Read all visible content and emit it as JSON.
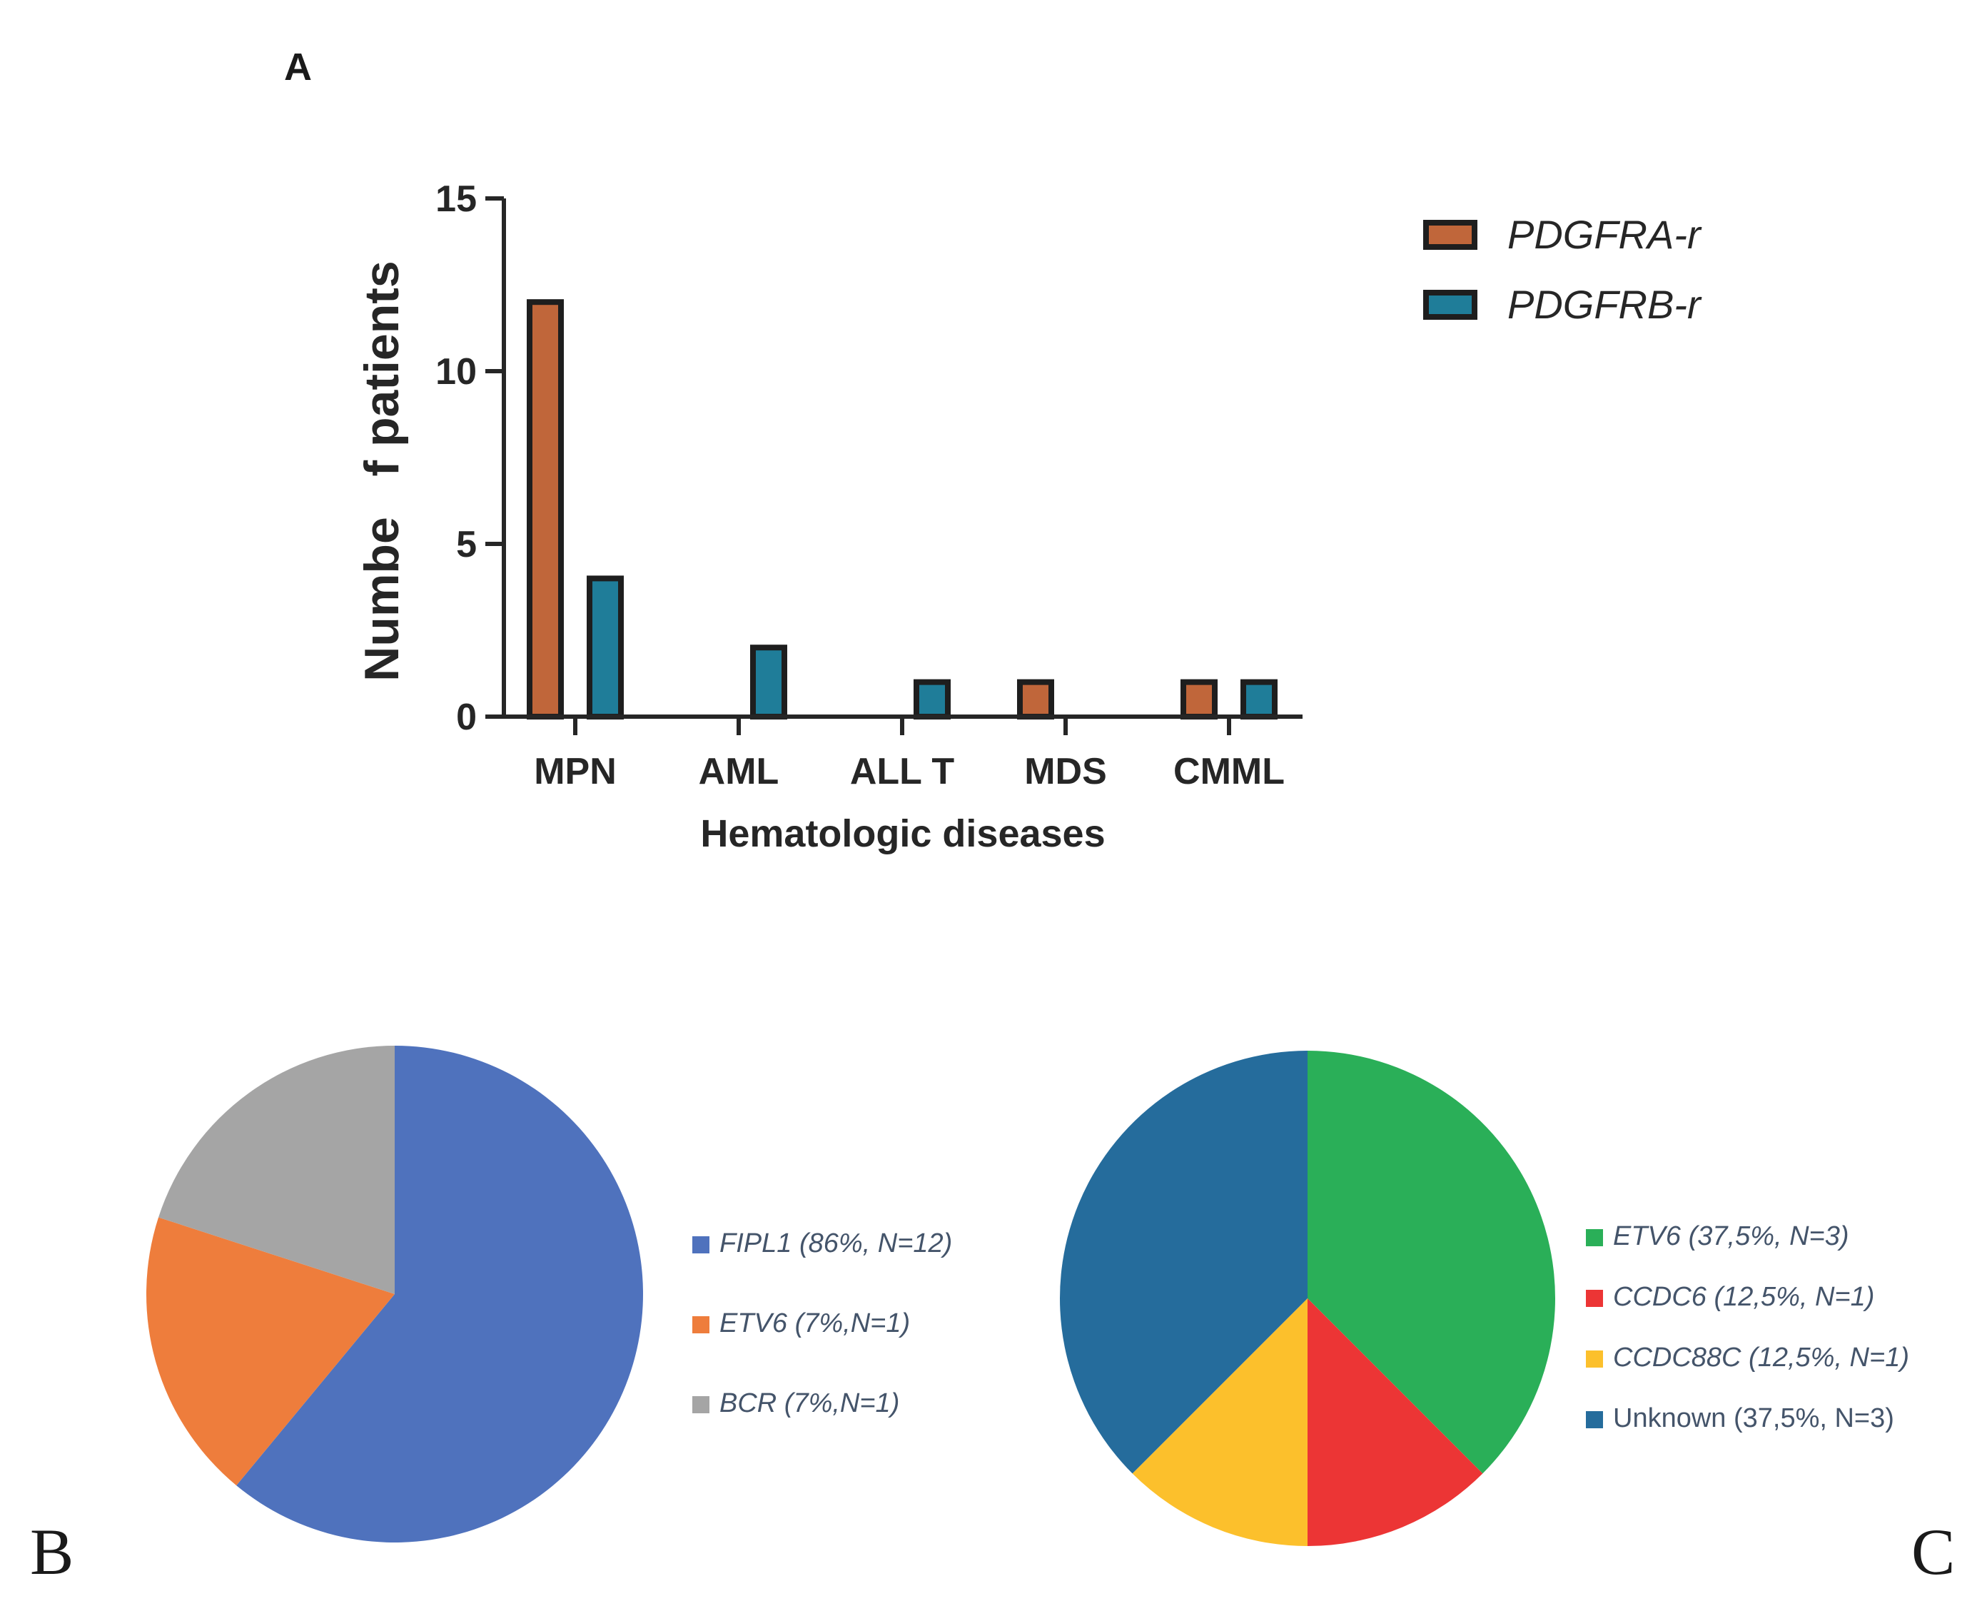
{
  "panels": {
    "a": "A",
    "b": "B",
    "c": "C"
  },
  "colors": {
    "pdgfra": "#c0663a",
    "pdgfrb": "#1f7d99",
    "bar_border": "#1e1e1e",
    "axis": "#262626",
    "legend_text_pie": "#44546a"
  },
  "chart_data": [
    {
      "type": "bar",
      "xlabel": "Hematologic diseases",
      "ylabel": "Numbe   f patients",
      "ylim": [
        0,
        15
      ],
      "yticks": [
        0,
        5,
        10,
        15
      ],
      "categories": [
        "MPN",
        "AML",
        "ALL T",
        "MDS",
        "CMML"
      ],
      "legend_position": "top-right",
      "series": [
        {
          "name": "PDGFRA-r",
          "color": "#c0663a",
          "values": [
            12,
            0,
            0,
            1,
            1
          ]
        },
        {
          "name": "PDGFRB-r",
          "color": "#1f7d99",
          "values": [
            4,
            2,
            1,
            0,
            1
          ]
        }
      ]
    },
    {
      "type": "pie",
      "slices": [
        {
          "label": "FIPL1 (86%, N=12)",
          "gene": "FIPL1",
          "value": 86,
          "n": 12,
          "color": "#4f72bd"
        },
        {
          "label": "ETV6 (7%,N=1)",
          "gene": "ETV6",
          "value": 7,
          "n": 1,
          "color": "#ee7d3c"
        },
        {
          "label": "BCR (7%,N=1)",
          "gene": "BCR",
          "value": 7,
          "n": 1,
          "color": "#a5a5a5"
        }
      ]
    },
    {
      "type": "pie",
      "slices": [
        {
          "label": "ETV6 (37,5%, N=3)",
          "gene": "ETV6",
          "value": 37.5,
          "n": 3,
          "color": "#2aaf58"
        },
        {
          "label": "CCDC6 (12,5%, N=1)",
          "gene": "CCDC6",
          "value": 12.5,
          "n": 1,
          "color": "#ec3535"
        },
        {
          "label": "CCDC88C (12,5%, N=1)",
          "gene": "CCDC88C",
          "value": 12.5,
          "n": 1,
          "color": "#fcc02c"
        },
        {
          "label": "Unknown (37,5%, N=3)",
          "gene": "Unknown",
          "value": 37.5,
          "n": 3,
          "color": "#256c9c"
        }
      ]
    }
  ]
}
